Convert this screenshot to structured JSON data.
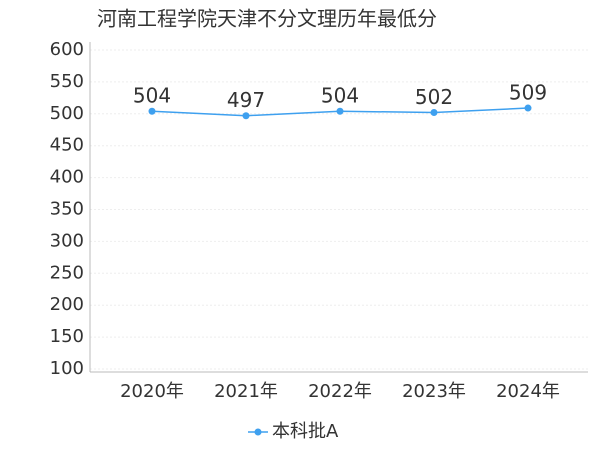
{
  "chart_data": {
    "type": "line",
    "title": "河南工程学院天津不分文理历年最低分",
    "categories": [
      "2020年",
      "2021年",
      "2022年",
      "2023年",
      "2024年"
    ],
    "series": [
      {
        "name": "本科批A",
        "color": "#3ea0ef",
        "values": [
          504,
          497,
          504,
          502,
          509
        ]
      }
    ],
    "ylim": [
      100,
      600
    ],
    "yticks": [
      100,
      150,
      200,
      250,
      300,
      350,
      400,
      450,
      500,
      550,
      600
    ],
    "grid": true
  }
}
